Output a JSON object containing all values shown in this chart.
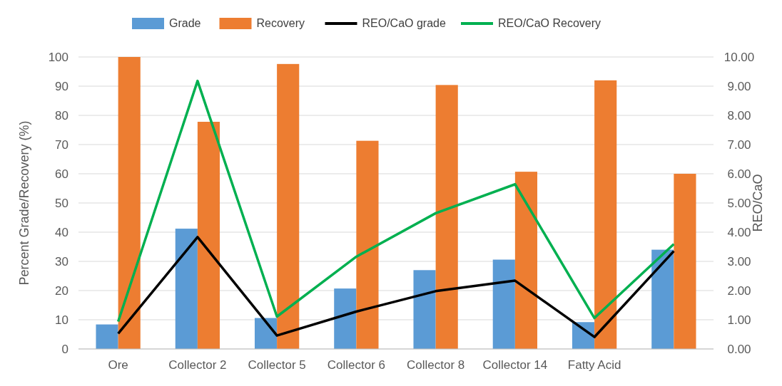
{
  "chart_data": {
    "type": "bar",
    "ylabel": "Percent Grade/Recovery (%)",
    "y2label": "REO/CaO",
    "categories": [
      "Ore",
      "Collector 2",
      "Collector 5",
      "Collector 6",
      "Collector 8",
      "Collector 14",
      "Fatty Acid",
      null
    ],
    "series": [
      {
        "name": "Grade",
        "color": "#5b9bd5",
        "values": [
          8.4,
          41.2,
          10.6,
          20.7,
          27,
          30.6,
          9.2,
          34
        ]
      },
      {
        "name": "Recovery",
        "color": "#ed7d31",
        "values": [
          100,
          77.8,
          97.6,
          71.3,
          90.4,
          60.7,
          92,
          60
        ]
      },
      {
        "name": "REO/CaO grade",
        "type": "line",
        "axis": "y2",
        "color": "#000000",
        "values": [
          0.53,
          3.83,
          0.46,
          1.28,
          1.98,
          2.34,
          0.41,
          3.35
        ]
      },
      {
        "name": "REO/CaO Recovery",
        "type": "line",
        "axis": "y2",
        "color": "#00b050",
        "values": [
          0.94,
          9.18,
          1.11,
          3.16,
          4.65,
          5.64,
          1.06,
          3.59
        ]
      }
    ],
    "ylim": [
      0,
      100
    ],
    "yticks": [
      0,
      10,
      20,
      30,
      40,
      50,
      60,
      70,
      80,
      90,
      100
    ],
    "y2lim": [
      0,
      10
    ],
    "y2ticks": [
      {
        "value": 0,
        "label": "0.00"
      },
      {
        "value": 1,
        "label": "1.00"
      },
      {
        "value": 2,
        "label": "2.00"
      },
      {
        "value": 3,
        "label": "3.00"
      },
      {
        "value": 4,
        "label": "4.00"
      },
      {
        "value": 5,
        "label": "5.00"
      },
      {
        "value": 6,
        "label": "6.00"
      },
      {
        "value": 7,
        "label": "7.00"
      },
      {
        "value": 8,
        "label": "8.00"
      },
      {
        "value": 9,
        "label": "9.00"
      },
      {
        "value": 10,
        "label": "10.00"
      }
    ],
    "grid": "y",
    "legend": "top",
    "marker": "none",
    "line_style": "solid"
  }
}
